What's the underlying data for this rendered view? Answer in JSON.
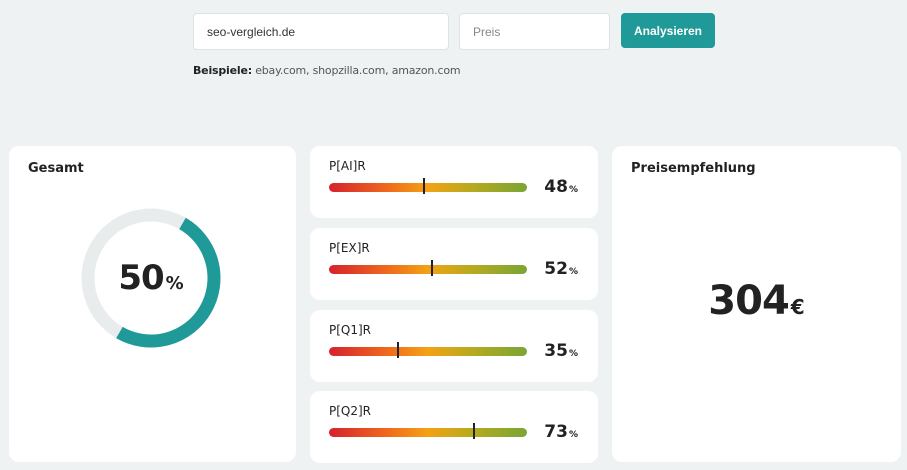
{
  "search": {
    "url_value": "seo-vergleich.de",
    "price_placeholder": "Preis",
    "analyze_label": "Analysieren"
  },
  "examples": {
    "label": "Beispiele:",
    "list": "ebay.com, shopzilla.com, amazon.com"
  },
  "total": {
    "title": "Gesamt",
    "value": "50",
    "unit": "%",
    "fraction": 0.5
  },
  "metrics": [
    {
      "name": "P[AI]R",
      "value": "48",
      "unit": "%",
      "marker": 48
    },
    {
      "name": "P[EX]R",
      "value": "52",
      "unit": "%",
      "marker": 52
    },
    {
      "name": "P[Q1]R",
      "value": "35",
      "unit": "%",
      "marker": 35
    },
    {
      "name": "P[Q2]R",
      "value": "73",
      "unit": "%",
      "marker": 73
    }
  ],
  "price": {
    "title": "Preisempfehlung",
    "value": "304",
    "currency": "€"
  },
  "colors": {
    "accent": "#1f9a99",
    "donut_track": "#e9eced",
    "background": "#eef2f3"
  }
}
